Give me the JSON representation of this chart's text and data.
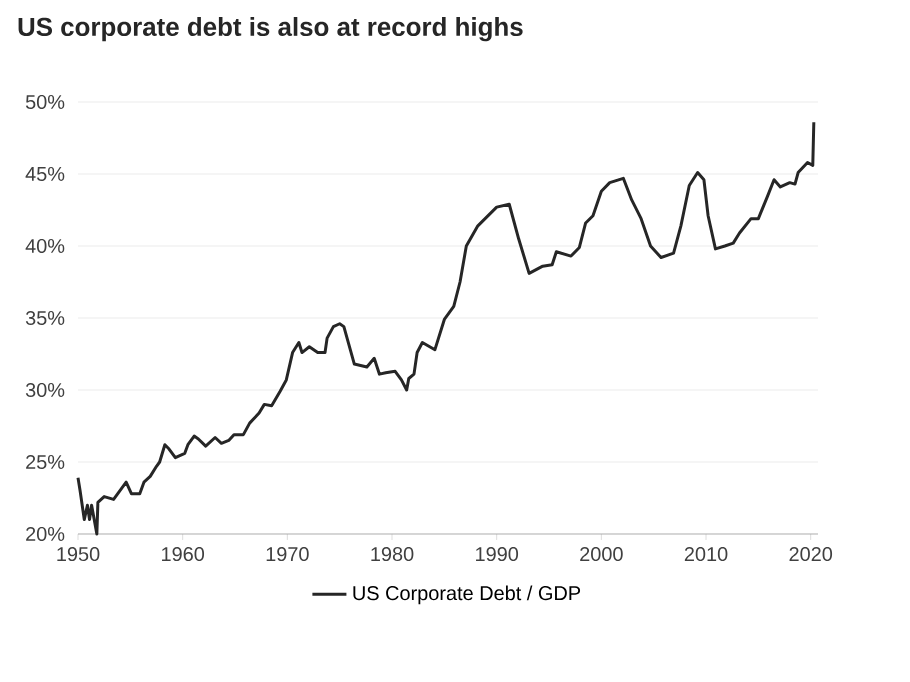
{
  "chart_data": {
    "type": "line",
    "title": "US corporate debt is also at record highs",
    "xlim": [
      1950,
      2020.7
    ],
    "ylim": [
      20,
      50
    ],
    "xticks": [
      1950,
      1960,
      1970,
      1980,
      1990,
      2000,
      2010,
      2020
    ],
    "yticks": [
      {
        "value": 20,
        "label": "20%"
      },
      {
        "value": 25,
        "label": "25%"
      },
      {
        "value": 30,
        "label": "30%"
      },
      {
        "value": 35,
        "label": "35%"
      },
      {
        "value": 40,
        "label": "40%"
      },
      {
        "value": 45,
        "label": "45%"
      },
      {
        "value": 50,
        "label": "50%"
      }
    ],
    "grid": "y",
    "legend": "bottom",
    "marker": "none",
    "line_style": "solid",
    "series": [
      {
        "name": "US Corporate Debt / GDP",
        "color": "#262626",
        "x": [
          1950.0,
          1950.2,
          1950.6,
          1950.9,
          1951.1,
          1951.3,
          1951.8,
          1951.9,
          1952.5,
          1953.4,
          1954.6,
          1955.1,
          1955.9,
          1956.3,
          1956.9,
          1957.5,
          1957.8,
          1958.3,
          1958.7,
          1959.3,
          1960.2,
          1960.5,
          1961.1,
          1961.5,
          1962.2,
          1963.1,
          1963.7,
          1964.4,
          1964.9,
          1965.8,
          1966.4,
          1967.3,
          1967.8,
          1968.5,
          1969.3,
          1969.9,
          1970.5,
          1971.1,
          1971.4,
          1972.1,
          1972.9,
          1973.6,
          1973.8,
          1974.4,
          1975.0,
          1975.4,
          1975.9,
          1976.4,
          1977.6,
          1978.3,
          1978.8,
          1979.4,
          1980.3,
          1980.9,
          1981.4,
          1981.6,
          1982.1,
          1982.4,
          1982.9,
          1984.1,
          1985.0,
          1985.9,
          1986.5,
          1987.1,
          1988.2,
          1990.0,
          1991.2,
          1992.1,
          1993.1,
          1994.4,
          1995.3,
          1995.7,
          1997.1,
          1997.9,
          1998.5,
          1999.2,
          2000.0,
          2000.8,
          2002.1,
          2002.9,
          2003.8,
          2004.7,
          2005.7,
          2006.9,
          2007.6,
          2008.4,
          2009.2,
          2009.8,
          2010.2,
          2010.9,
          2011.8,
          2012.6,
          2013.2,
          2014.3,
          2015.0,
          2015.9,
          2016.5,
          2017.1,
          2018.0,
          2018.5,
          2018.8,
          2019.7,
          2020.2,
          2020.3
        ],
        "values": [
          23.9,
          23.0,
          21.0,
          22.0,
          21.0,
          22.0,
          20.0,
          22.2,
          22.6,
          22.4,
          23.6,
          22.8,
          22.8,
          23.6,
          24.0,
          24.7,
          25.0,
          26.2,
          25.9,
          25.3,
          25.6,
          26.2,
          26.8,
          26.6,
          26.1,
          26.7,
          26.3,
          26.5,
          26.9,
          26.9,
          27.7,
          28.4,
          29.0,
          28.9,
          29.9,
          30.7,
          32.6,
          33.3,
          32.6,
          33.0,
          32.6,
          32.6,
          33.6,
          34.4,
          34.6,
          34.4,
          33.1,
          31.8,
          31.6,
          32.2,
          31.1,
          31.2,
          31.3,
          30.7,
          30.0,
          30.8,
          31.1,
          32.6,
          33.3,
          32.8,
          34.9,
          35.8,
          37.5,
          40.0,
          41.4,
          42.7,
          42.9,
          40.5,
          38.1,
          38.6,
          38.7,
          39.6,
          39.3,
          39.9,
          41.6,
          42.1,
          43.8,
          44.4,
          44.7,
          43.2,
          41.9,
          40.0,
          39.2,
          39.5,
          41.4,
          44.2,
          45.1,
          44.6,
          42.1,
          39.8,
          40.0,
          40.2,
          40.9,
          41.9,
          41.9,
          43.5,
          44.6,
          44.1,
          44.4,
          44.3,
          45.1,
          45.8,
          45.6,
          48.6
        ]
      }
    ]
  }
}
